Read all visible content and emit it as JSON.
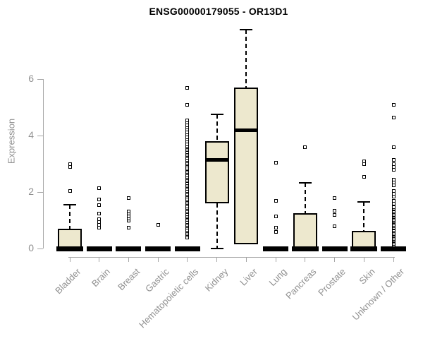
{
  "header": {
    "title": "ENSG00000179055 - OR13D1"
  },
  "chart_data": {
    "type": "boxplot",
    "title": "ENSG00000179055 - OR13D1",
    "ylabel": "Expression",
    "xlabel": "",
    "yticks": [
      0,
      2,
      4,
      6
    ],
    "ylim": [
      0,
      7.8
    ],
    "grid": false,
    "legend": "none",
    "box_fill": "#EDE8CE",
    "box_border": "#000000",
    "axis_color": "#a6a6a6",
    "text_color": "#909090",
    "categories": [
      "Bladder",
      "Brain",
      "Breast",
      "Gastric",
      "Hematopoietic cells",
      "Kidney",
      "Liver",
      "Lung",
      "Pancreas",
      "Prostate",
      "Skin",
      "Unknown / Other"
    ],
    "boxes": [
      {
        "category": "Bladder",
        "lo": 0,
        "q1": 0,
        "med": 0,
        "q3": 0.7,
        "hi": 1.55,
        "outliers": [
          2.05,
          2.88,
          3.0
        ]
      },
      {
        "category": "Brain",
        "lo": 0,
        "q1": 0,
        "med": 0,
        "q3": 0,
        "hi": 0,
        "outliers": [
          0.73,
          0.85,
          0.95,
          1.05,
          1.25,
          1.55,
          1.75,
          2.15
        ]
      },
      {
        "category": "Breast",
        "lo": 0,
        "q1": 0,
        "med": 0,
        "q3": 0,
        "hi": 0,
        "outliers": [
          0.73,
          {
            "from": 0.98,
            "to": 1.4,
            "step": 0.085
          },
          1.78
        ]
      },
      {
        "category": "Gastric",
        "lo": 0,
        "q1": 0,
        "med": 0,
        "q3": 0,
        "hi": 0,
        "outliers": [
          0.85
        ]
      },
      {
        "category": "Hematopoietic cells",
        "lo": 0,
        "q1": 0,
        "med": 0,
        "q3": 0,
        "hi": 0,
        "outliers": [
          {
            "from": 0.4,
            "to": 3.7,
            "step": 0.055
          },
          {
            "from": 3.78,
            "to": 4.55,
            "step": 0.085
          },
          5.1,
          5.7
        ]
      },
      {
        "category": "Kidney",
        "lo": 0,
        "q1": 1.6,
        "med": 3.15,
        "q3": 3.8,
        "hi": 4.75,
        "outliers": []
      },
      {
        "category": "Liver",
        "lo": 0.15,
        "q1": 0.15,
        "med": 4.2,
        "q3": 5.7,
        "hi": 7.75,
        "outliers": []
      },
      {
        "category": "Lung",
        "lo": 0,
        "q1": 0,
        "med": 0,
        "q3": 0,
        "hi": 0,
        "outliers": [
          0.6,
          0.75,
          1.13,
          1.7,
          3.03
        ]
      },
      {
        "category": "Pancreas",
        "lo": 0,
        "q1": 0,
        "med": 0,
        "q3": 1.25,
        "hi": 2.33,
        "outliers": [
          3.6
        ]
      },
      {
        "category": "Prostate",
        "lo": 0,
        "q1": 0,
        "med": 0,
        "q3": 0,
        "hi": 0,
        "outliers": [
          0.8,
          1.2,
          1.35,
          1.8
        ]
      },
      {
        "category": "Skin",
        "lo": 0,
        "q1": 0,
        "med": 0,
        "q3": 0.63,
        "hi": 1.65,
        "outliers": [
          2.55,
          2.98,
          3.1
        ]
      },
      {
        "category": "Unknown / Other",
        "lo": 0,
        "q1": 0,
        "med": 0,
        "q3": 0,
        "hi": 0,
        "outliers": [
          {
            "from": 0.12,
            "to": 1.48,
            "step": 0.045
          },
          1.6,
          1.7,
          1.85,
          1.95,
          2.05,
          2.23,
          2.33,
          2.43,
          2.8,
          2.9,
          3.0,
          3.13,
          3.58,
          4.63,
          5.08
        ]
      }
    ]
  }
}
